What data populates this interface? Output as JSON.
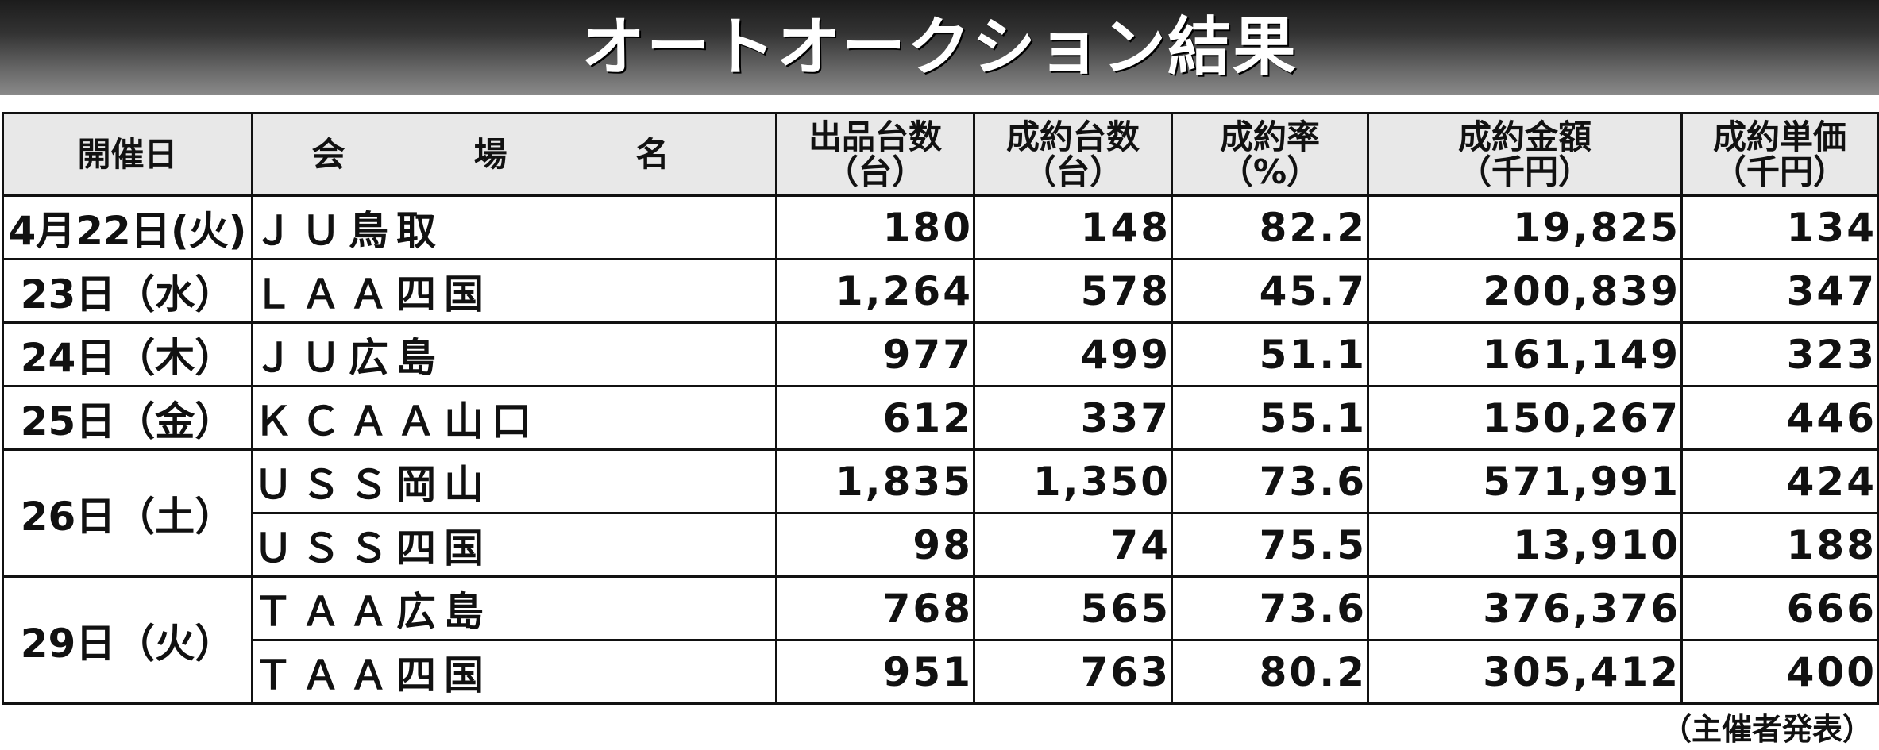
{
  "title": "オートオークション結果",
  "headers": {
    "date": "開催日",
    "venue": "会　場　名",
    "listed": [
      "出品台数",
      "（台）"
    ],
    "sold": [
      "成約台数",
      "（台）"
    ],
    "rate": [
      "成約率",
      "（%）"
    ],
    "amount": [
      "成約金額",
      "（千円）"
    ],
    "unit": [
      "成約単価",
      "（千円）"
    ]
  },
  "rows": [
    {
      "date": "4月22日(火)",
      "venue": "ＪＵ鳥取",
      "listed": "180",
      "sold": "148",
      "rate": "82.2",
      "amount": "19,825",
      "unit": "134"
    },
    {
      "date": "23日（水）",
      "venue": "ＬＡＡ四国",
      "listed": "1,264",
      "sold": "578",
      "rate": "45.7",
      "amount": "200,839",
      "unit": "347"
    },
    {
      "date": "24日（木）",
      "venue": "ＪＵ広島",
      "listed": "977",
      "sold": "499",
      "rate": "51.1",
      "amount": "161,149",
      "unit": "323"
    },
    {
      "date": "25日（金）",
      "venue": "ＫＣＡＡ山口",
      "listed": "612",
      "sold": "337",
      "rate": "55.1",
      "amount": "150,267",
      "unit": "446"
    },
    {
      "date": "26日（土）",
      "venue": "ＵＳＳ岡山",
      "listed": "1,835",
      "sold": "1,350",
      "rate": "73.6",
      "amount": "571,991",
      "unit": "424"
    },
    {
      "date": "",
      "venue": "ＵＳＳ四国",
      "listed": "98",
      "sold": "74",
      "rate": "75.5",
      "amount": "13,910",
      "unit": "188"
    },
    {
      "date": "29日（火）",
      "venue": "ＴＡＡ広島",
      "listed": "768",
      "sold": "565",
      "rate": "73.6",
      "amount": "376,376",
      "unit": "666"
    },
    {
      "date": "",
      "venue": "ＴＡＡ四国",
      "listed": "951",
      "sold": "763",
      "rate": "80.2",
      "amount": "305,412",
      "unit": "400"
    }
  ],
  "footer": "（主催者発表）"
}
